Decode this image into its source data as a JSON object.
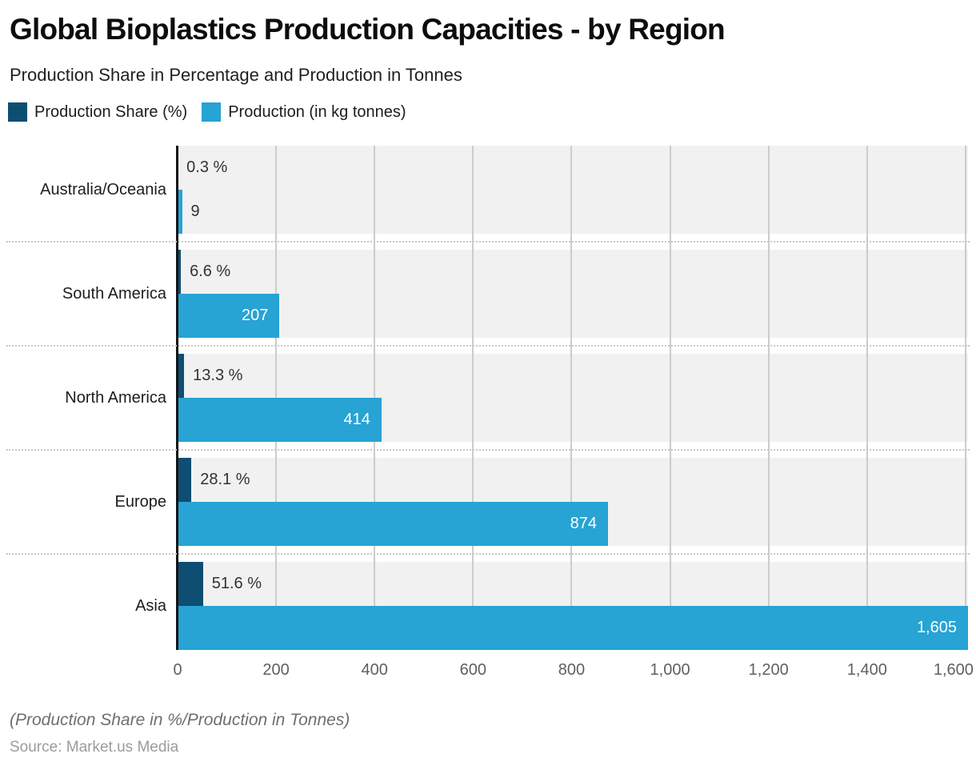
{
  "header": {
    "title": "Global Bioplastics Production Capacities - by Region",
    "subtitle": "Production Share in Percentage and Production in Tonnes"
  },
  "legend": {
    "items": [
      {
        "label": "Production Share (%)",
        "color": "#0e4e72"
      },
      {
        "label": "Production (in kg tonnes)",
        "color": "#27a3d4"
      }
    ]
  },
  "chart_data": {
    "type": "bar",
    "orientation": "horizontal",
    "title": "Global Bioplastics Production Capacities - by Region",
    "subtitle": "Production Share in Percentage and Production in Tonnes",
    "categories": [
      "Australia/Oceania",
      "South America",
      "North America",
      "Europe",
      "Asia"
    ],
    "series": [
      {
        "name": "Production Share (%)",
        "color": "#0e4e72",
        "values": [
          0.3,
          6.6,
          13.3,
          28.1,
          51.6
        ],
        "labels": [
          "0.3 %",
          "6.6 %",
          "13.3 %",
          "28.1 %",
          "51.6 %"
        ]
      },
      {
        "name": "Production (in kg tonnes)",
        "color": "#27a3d4",
        "values": [
          9,
          207,
          414,
          874,
          1605
        ],
        "labels": [
          "9",
          "207",
          "414",
          "874",
          "1,605"
        ]
      }
    ],
    "x_axis": {
      "min": 0,
      "max": 1605,
      "tick_interval": 200,
      "tick_labels": [
        "0",
        "200",
        "400",
        "600",
        "800",
        "1,000",
        "1,200",
        "1,400",
        "1,600"
      ]
    },
    "grid": true,
    "legend_position": "top",
    "plot_band_color": "#f1f1f1",
    "gridline_color": "#cccccc"
  },
  "footer": {
    "note": "(Production Share in %/Production in Tonnes)",
    "source": "Source: Market.us Media"
  }
}
